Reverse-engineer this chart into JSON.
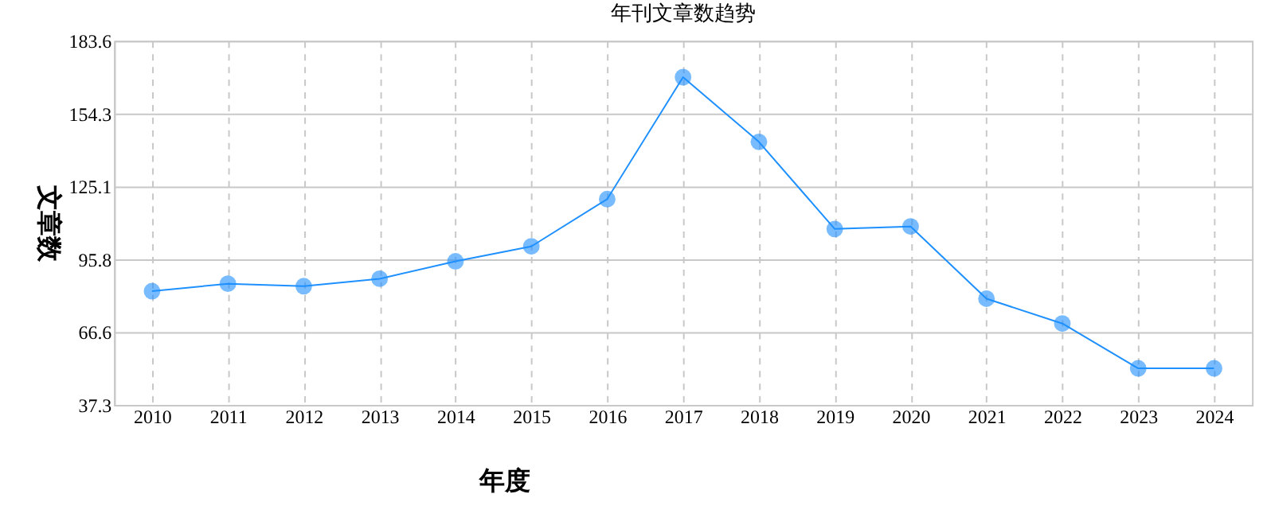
{
  "chart_data": {
    "type": "line",
    "title": "年刊文章数趋势",
    "xlabel": "年度",
    "ylabel": "文章数",
    "categories": [
      "2010",
      "2011",
      "2012",
      "2013",
      "2014",
      "2015",
      "2016",
      "2017",
      "2018",
      "2019",
      "2020",
      "2021",
      "2022",
      "2023",
      "2024"
    ],
    "series": [
      {
        "color": "#1e90ff",
        "values": [
          83,
          86,
          85,
          88,
          95,
          101,
          120,
          169,
          143,
          108,
          109,
          80,
          70,
          52,
          52
        ]
      }
    ],
    "ylim": [
      37.3,
      183.6
    ],
    "yticks": [
      37.3,
      66.6,
      95.8,
      125.1,
      154.3,
      183.6
    ],
    "grid": true,
    "marker": "circle",
    "line_style": "solid"
  }
}
